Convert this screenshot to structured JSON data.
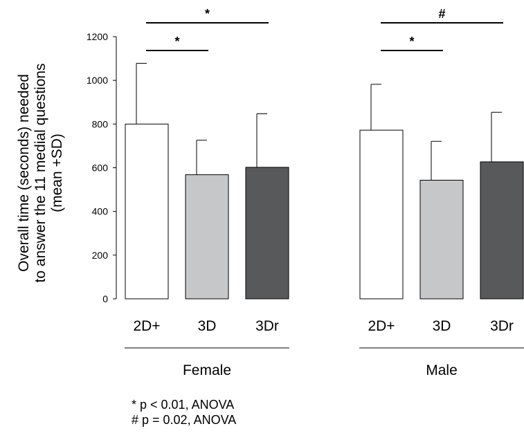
{
  "chart_data": {
    "type": "bar",
    "groups": [
      {
        "name": "Female",
        "bars": [
          {
            "category": "2D+",
            "value": 800,
            "sd": 278,
            "fill": "#ffffff"
          },
          {
            "category": "3D",
            "value": 568,
            "sd": 158,
            "fill": "#c6c7c9"
          },
          {
            "category": "3Dr",
            "value": 602,
            "sd": 245,
            "fill": "#58595b"
          }
        ]
      },
      {
        "name": "Male",
        "bars": [
          {
            "category": "2D+",
            "value": 772,
            "sd": 210,
            "fill": "#ffffff"
          },
          {
            "category": "3D",
            "value": 543,
            "sd": 178,
            "fill": "#c6c7c9"
          },
          {
            "category": "3Dr",
            "value": 627,
            "sd": 227,
            "fill": "#58595b"
          }
        ]
      }
    ],
    "ylabel": [
      "Overall time (seconds) needed",
      "to answer the 11 medial questions",
      "(mean +SD)"
    ],
    "ylim": [
      0,
      1200
    ],
    "yticks": [
      0,
      200,
      400,
      600,
      800,
      1000,
      1200
    ],
    "grid": false,
    "significance": [
      {
        "group": 0,
        "from": 0,
        "to": 2,
        "label": "*",
        "level": 2
      },
      {
        "group": 0,
        "from": 0,
        "to": 1,
        "label": "*",
        "level": 1
      },
      {
        "group": 1,
        "from": 0,
        "to": 2,
        "label": "#",
        "level": 2
      },
      {
        "group": 1,
        "from": 0,
        "to": 1,
        "label": "*",
        "level": 1
      }
    ],
    "footnotes": [
      "* p < 0.01, ANOVA",
      "# p = 0.02, ANOVA"
    ]
  }
}
